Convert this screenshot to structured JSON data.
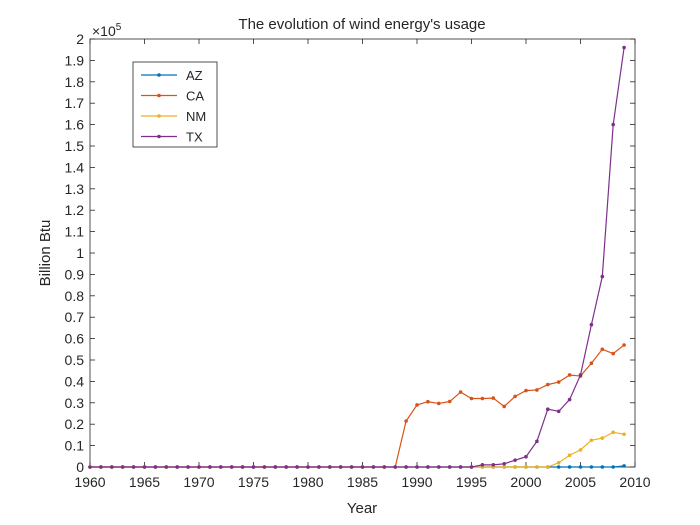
{
  "chart_data": {
    "type": "line",
    "title": "The evolution of wind energy's usage",
    "xlabel": "Year",
    "ylabel": "Billion Btu",
    "y_exponent_label": "×10",
    "y_exponent_power": "5",
    "xlim": [
      1960,
      2010
    ],
    "ylim": [
      0,
      2
    ],
    "y_scale_factor": 100000,
    "xticks": [
      1960,
      1965,
      1970,
      1975,
      1980,
      1985,
      1990,
      1995,
      2000,
      2005,
      2010
    ],
    "yticks": [
      0,
      0.1,
      0.2,
      0.3,
      0.4,
      0.5,
      0.6,
      0.7,
      0.8,
      0.9,
      1,
      1.1,
      1.2,
      1.3,
      1.4,
      1.5,
      1.6,
      1.7,
      1.8,
      1.9,
      2
    ],
    "grid": false,
    "legend_position": "top-left",
    "x": [
      1960,
      1961,
      1962,
      1963,
      1964,
      1965,
      1966,
      1967,
      1968,
      1969,
      1970,
      1971,
      1972,
      1973,
      1974,
      1975,
      1976,
      1977,
      1978,
      1979,
      1980,
      1981,
      1982,
      1983,
      1984,
      1985,
      1986,
      1987,
      1988,
      1989,
      1990,
      1991,
      1992,
      1993,
      1994,
      1995,
      1996,
      1997,
      1998,
      1999,
      2000,
      2001,
      2002,
      2003,
      2004,
      2005,
      2006,
      2007,
      2008,
      2009
    ],
    "series": [
      {
        "name": "AZ",
        "color": "#0072BD",
        "values": [
          0,
          0,
          0,
          0,
          0,
          0,
          0,
          0,
          0,
          0,
          0,
          0,
          0,
          0,
          0,
          0,
          0,
          0,
          0,
          0,
          0,
          0,
          0,
          0,
          0,
          0,
          0,
          0,
          0,
          0,
          0,
          0,
          0,
          0,
          0,
          0,
          0,
          0,
          0,
          0,
          0,
          0,
          0,
          0,
          0,
          0,
          0,
          0,
          0,
          0.005
        ]
      },
      {
        "name": "CA",
        "color": "#D95319",
        "values": [
          0,
          0,
          0,
          0,
          0,
          0,
          0,
          0,
          0,
          0,
          0,
          0,
          0,
          0,
          0,
          0,
          0,
          0,
          0,
          0,
          0,
          0,
          0,
          0,
          0,
          0,
          0,
          0,
          0,
          0.215,
          0.29,
          0.305,
          0.297,
          0.306,
          0.35,
          0.32,
          0.32,
          0.322,
          0.283,
          0.33,
          0.357,
          0.36,
          0.385,
          0.397,
          0.43,
          0.425,
          0.485,
          0.55,
          0.53,
          0.57
        ]
      },
      {
        "name": "NM",
        "color": "#EDB120",
        "values": [
          0,
          0,
          0,
          0,
          0,
          0,
          0,
          0,
          0,
          0,
          0,
          0,
          0,
          0,
          0,
          0,
          0,
          0,
          0,
          0,
          0,
          0,
          0,
          0,
          0,
          0,
          0,
          0,
          0,
          0,
          0,
          0,
          0,
          0,
          0,
          0,
          0,
          0,
          0,
          0,
          0,
          0,
          0,
          0.02,
          0.055,
          0.08,
          0.125,
          0.135,
          0.162,
          0.153
        ]
      },
      {
        "name": "TX",
        "color": "#7E2F8E",
        "values": [
          0,
          0,
          0,
          0,
          0,
          0,
          0,
          0,
          0,
          0,
          0,
          0,
          0,
          0,
          0,
          0,
          0,
          0,
          0,
          0,
          0,
          0,
          0,
          0,
          0,
          0,
          0,
          0,
          0,
          0,
          0,
          0,
          0,
          0,
          0,
          0,
          0.01,
          0.01,
          0.015,
          0.032,
          0.048,
          0.12,
          0.27,
          0.26,
          0.315,
          0.43,
          0.665,
          0.89,
          1.6,
          1.96
        ]
      }
    ]
  }
}
